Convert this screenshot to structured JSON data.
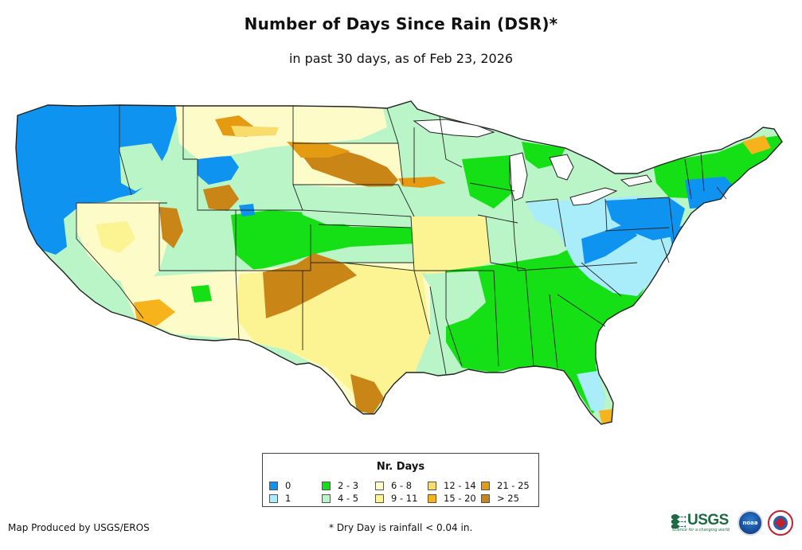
{
  "title": "Number of Days Since Rain (DSR)*",
  "subtitle": "in past 30 days, as of Feb 23, 2026",
  "legend": {
    "title": "Nr. Days",
    "items": [
      {
        "label": "0",
        "color": "#0f93f0"
      },
      {
        "label": "1",
        "color": "#a9ecfa"
      },
      {
        "label": "2 - 3",
        "color": "#15e015"
      },
      {
        "label": "4 - 5",
        "color": "#b9f5c7"
      },
      {
        "label": "6 - 8",
        "color": "#fdfbc8"
      },
      {
        "label": "9 - 11",
        "color": "#fcf392"
      },
      {
        "label": "12 - 14",
        "color": "#f8dc6c"
      },
      {
        "label": "15 - 20",
        "color": "#f6b31c"
      },
      {
        "label": "21 - 25",
        "color": "#e49b12"
      },
      {
        "label": "> 25",
        "color": "#c98515"
      }
    ]
  },
  "footer": {
    "credit": "Map Produced by USGS/EROS",
    "note": "* Dry Day is rainfall < 0.04 in."
  },
  "logos": {
    "usgs": "USGS",
    "usgs_tagline": "science for a changing world",
    "noaa": "noaa"
  }
}
